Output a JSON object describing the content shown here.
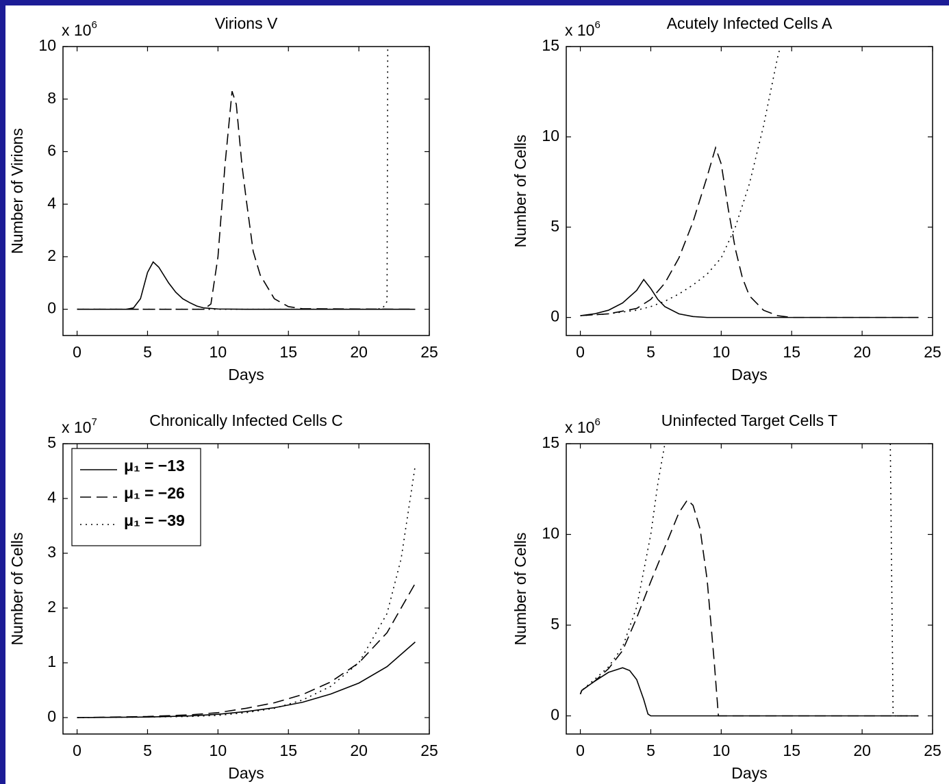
{
  "chart_data": [
    {
      "type": "line",
      "title": "Virions V",
      "y_scale_base": "x 10",
      "y_scale_exponent": 6,
      "xlabel": "Days",
      "ylabel": "Number of Virions",
      "xlim": [
        -1,
        25
      ],
      "ylim": [
        -1,
        10
      ],
      "xticks": [
        0,
        5,
        10,
        15,
        20,
        25
      ],
      "yticks": [
        0,
        2,
        4,
        6,
        8,
        10
      ],
      "series": [
        {
          "color": "#000000",
          "dash": "solid",
          "x": [
            0,
            3.5,
            4,
            4.5,
            5,
            5.4,
            5.8,
            6.5,
            7,
            7.5,
            8,
            8.5,
            9,
            10,
            12,
            24
          ],
          "values": [
            0,
            0,
            0.05,
            0.4,
            1.4,
            1.8,
            1.6,
            1.0,
            0.65,
            0.4,
            0.25,
            0.12,
            0.05,
            0.01,
            0,
            0
          ]
        },
        {
          "color": "#000000",
          "dash": "dashed",
          "x": [
            0,
            9,
            9.5,
            10,
            10.5,
            11,
            11.3,
            11.7,
            12,
            12.5,
            13,
            14,
            15,
            16,
            24
          ],
          "values": [
            0,
            0,
            0.2,
            2,
            5.5,
            8.3,
            7.8,
            5.5,
            4.2,
            2.2,
            1.3,
            0.4,
            0.1,
            0.02,
            0
          ]
        },
        {
          "color": "#000000",
          "dash": "dotted",
          "x": [
            0,
            21.3,
            21.7,
            22,
            22.05
          ],
          "values": [
            0,
            0,
            0.05,
            0.3,
            10
          ]
        }
      ]
    },
    {
      "type": "line",
      "title": "Acutely Infected Cells A",
      "y_scale_base": "x 10",
      "y_scale_exponent": 6,
      "xlabel": "Days",
      "ylabel": "Number of Cells",
      "xlim": [
        -1,
        25
      ],
      "ylim": [
        -1,
        15
      ],
      "xticks": [
        0,
        5,
        10,
        15,
        20,
        25
      ],
      "yticks": [
        0,
        5,
        10,
        15
      ],
      "series": [
        {
          "color": "#000000",
          "dash": "solid",
          "x": [
            0,
            1,
            2,
            3,
            4,
            4.5,
            5,
            5.5,
            6,
            7,
            8,
            9,
            24
          ],
          "values": [
            0.1,
            0.2,
            0.4,
            0.8,
            1.5,
            2.1,
            1.6,
            1.0,
            0.6,
            0.2,
            0.05,
            0,
            0
          ]
        },
        {
          "color": "#000000",
          "dash": "dashed",
          "x": [
            0,
            2,
            4,
            5,
            6,
            7,
            8,
            9,
            9.6,
            10,
            10.5,
            11,
            11.5,
            12,
            13,
            14,
            15,
            24
          ],
          "values": [
            0.1,
            0.2,
            0.5,
            1,
            1.9,
            3.3,
            5.3,
            7.8,
            9.4,
            8.5,
            6,
            3.8,
            2.2,
            1.2,
            0.4,
            0.1,
            0,
            0
          ]
        },
        {
          "color": "#000000",
          "dash": "dotted",
          "x": [
            0,
            2,
            4,
            5,
            6,
            7,
            8,
            9,
            10,
            11,
            12,
            13,
            14,
            14.2
          ],
          "values": [
            0.1,
            0.2,
            0.4,
            0.6,
            0.9,
            1.3,
            1.8,
            2.4,
            3.3,
            5,
            7.4,
            10.6,
            14.4,
            15
          ]
        }
      ]
    },
    {
      "type": "line",
      "title": "Chronically Infected Cells C",
      "y_scale_base": "x 10",
      "y_scale_exponent": 7,
      "xlabel": "Days",
      "ylabel": "Number of Cells",
      "xlim": [
        -1,
        25
      ],
      "ylim": [
        -0.3,
        5
      ],
      "xticks": [
        0,
        5,
        10,
        15,
        20,
        25
      ],
      "yticks": [
        0,
        1,
        2,
        3,
        4,
        5
      ],
      "legend": "upper left",
      "series": [
        {
          "name": "μ₁ = −13",
          "color": "#000000",
          "dash": "solid",
          "x": [
            0,
            5,
            8,
            10,
            12,
            14,
            16,
            18,
            20,
            22,
            24
          ],
          "values": [
            0,
            0.01,
            0.03,
            0.06,
            0.11,
            0.18,
            0.28,
            0.43,
            0.63,
            0.93,
            1.38
          ]
        },
        {
          "name": "μ₁ = −26",
          "color": "#000000",
          "dash": "dashed",
          "x": [
            0,
            5,
            8,
            10,
            12,
            14,
            16,
            18,
            20,
            22,
            24
          ],
          "values": [
            0,
            0.02,
            0.05,
            0.09,
            0.17,
            0.27,
            0.42,
            0.65,
            1.0,
            1.55,
            2.45
          ]
        },
        {
          "name": "μ₁ = −39",
          "color": "#000000",
          "dash": "dotted",
          "x": [
            0,
            5,
            8,
            10,
            12,
            14,
            16,
            18,
            20,
            22,
            23,
            24
          ],
          "values": [
            0,
            0.01,
            0.02,
            0.04,
            0.09,
            0.17,
            0.32,
            0.57,
            1.0,
            1.9,
            2.9,
            4.6
          ]
        }
      ]
    },
    {
      "type": "line",
      "title": "Uninfected Target Cells T",
      "y_scale_base": "x 10",
      "y_scale_exponent": 6,
      "xlabel": "Days",
      "ylabel": "Number of Cells",
      "xlim": [
        -1,
        25
      ],
      "ylim": [
        -1,
        15
      ],
      "xticks": [
        0,
        5,
        10,
        15,
        20,
        25
      ],
      "yticks": [
        0,
        5,
        10,
        15
      ],
      "series": [
        {
          "color": "#000000",
          "dash": "solid",
          "x": [
            0,
            0.1,
            1,
            2,
            3,
            3.5,
            4,
            4.5,
            4.8,
            5,
            24
          ],
          "values": [
            1.2,
            1.4,
            1.9,
            2.4,
            2.65,
            2.5,
            2,
            0.9,
            0.1,
            0,
            0
          ]
        },
        {
          "color": "#000000",
          "dash": "dashed",
          "x": [
            0,
            0.1,
            1,
            2,
            3,
            4,
            5,
            6,
            7,
            7.6,
            8,
            8.5,
            9,
            9.5,
            9.8,
            24
          ],
          "values": [
            1.2,
            1.4,
            1.9,
            2.6,
            3.6,
            5.4,
            7.4,
            9.3,
            11.2,
            11.9,
            11.6,
            10.3,
            7.5,
            3,
            0,
            0
          ]
        },
        {
          "color": "#000000",
          "dash": "dotted",
          "x": [
            0,
            0.1,
            1,
            2,
            3,
            4,
            5,
            5.5,
            6,
            14,
            22,
            22.2,
            24
          ],
          "values": [
            1.2,
            1.4,
            2,
            2.7,
            3.8,
            6,
            10,
            12.8,
            15,
            null,
            15,
            0,
            0
          ]
        }
      ]
    }
  ]
}
